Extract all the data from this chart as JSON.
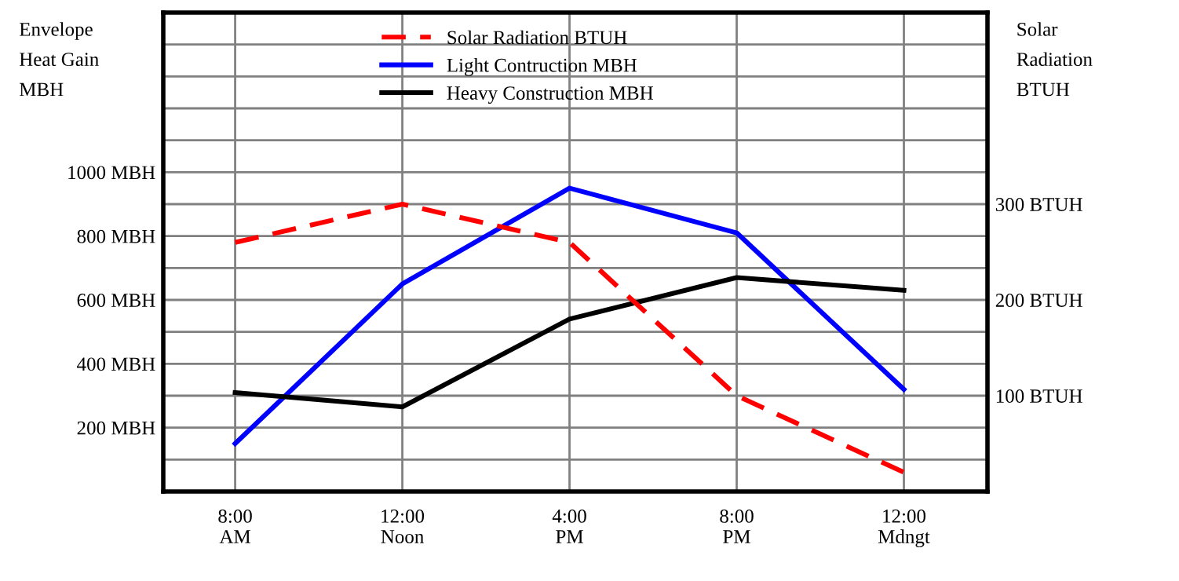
{
  "chart_data": {
    "type": "line",
    "ylabel": "Envelope\nHeat Gain\nMBH",
    "y2label": "Solar\nRadiation\nBTUH",
    "categories": [
      "8:00\nAM",
      "12:00\nNoon",
      "4:00\nPM",
      "8:00\nPM",
      "12:00\nMdngt"
    ],
    "series": [
      {
        "name": "Solar Radiation BTUH",
        "color": "#ff0000",
        "line_style": "dashed",
        "axis": "y2",
        "values": [
          260,
          300,
          260,
          100,
          20
        ]
      },
      {
        "name": "Light Contruction MBH",
        "color": "#0000ff",
        "line_style": "solid",
        "values": [
          150,
          650,
          950,
          810,
          320
        ]
      },
      {
        "name": "Heavy Construction MBH",
        "color": "#000000",
        "line_style": "solid",
        "values": [
          310,
          265,
          540,
          670,
          630
        ]
      }
    ],
    "ylim": [
      0,
      1500
    ],
    "yticks": [
      {
        "value": 100,
        "label": null
      },
      {
        "value": 200,
        "label": "200 MBH"
      },
      {
        "value": 300,
        "label": null
      },
      {
        "value": 400,
        "label": "400 MBH"
      },
      {
        "value": 500,
        "label": null
      },
      {
        "value": 600,
        "label": "600 MBH"
      },
      {
        "value": 700,
        "label": null
      },
      {
        "value": 800,
        "label": "800 MBH"
      },
      {
        "value": 900,
        "label": null
      },
      {
        "value": 1000,
        "label": "1000 MBH"
      },
      {
        "value": 1100,
        "label": null
      },
      {
        "value": 1200,
        "label": null
      },
      {
        "value": 1300,
        "label": null
      },
      {
        "value": 1400,
        "label": null
      }
    ],
    "y2lim": [
      0,
      500
    ],
    "y2ticks": [
      {
        "value": 100,
        "label": "100 BTUH"
      },
      {
        "value": 200,
        "label": "200 BTUH"
      },
      {
        "value": 300,
        "label": "300 BTUH"
      }
    ],
    "grid": true,
    "legend": "top",
    "marker": "none"
  }
}
